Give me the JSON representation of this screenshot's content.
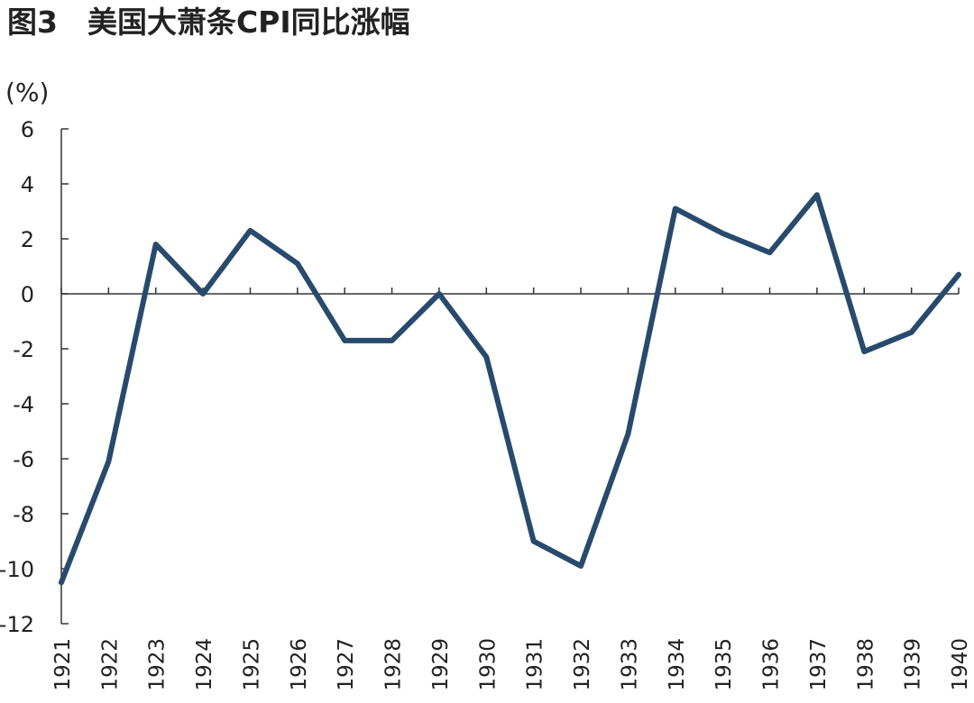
{
  "chart_data": {
    "type": "line",
    "title": "图3　美国大萧条CPI同比涨幅",
    "y_label": "(%)",
    "categories": [
      "1921",
      "1922",
      "1923",
      "1924",
      "1925",
      "1926",
      "1927",
      "1928",
      "1929",
      "1930",
      "1931",
      "1932",
      "1933",
      "1934",
      "1935",
      "1936",
      "1937",
      "1938",
      "1939",
      "1940"
    ],
    "values": [
      -10.5,
      -6.1,
      1.8,
      0.0,
      2.3,
      1.1,
      -1.7,
      -1.7,
      0.0,
      -2.3,
      -9.0,
      -9.9,
      -5.1,
      3.1,
      2.2,
      1.5,
      3.6,
      -2.1,
      -1.4,
      0.7
    ],
    "color": "#284a6c",
    "ylim": [
      -12,
      6
    ],
    "yticks": [
      6,
      4,
      2,
      0,
      -2,
      -4,
      -6,
      -8,
      -10,
      -12
    ]
  }
}
